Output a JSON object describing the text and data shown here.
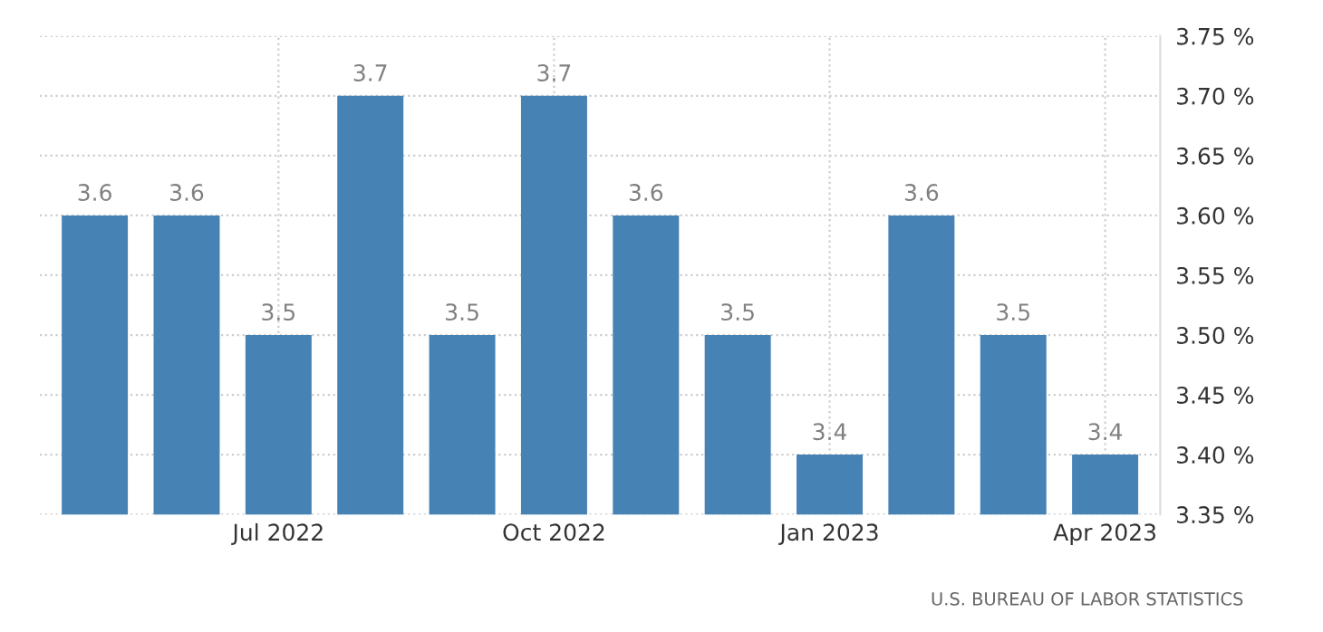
{
  "chart_data": {
    "type": "bar",
    "categories": [
      null,
      null,
      "Jul 2022",
      null,
      null,
      "Oct 2022",
      null,
      null,
      "Jan 2023",
      null,
      null,
      "Apr 2023"
    ],
    "values": [
      3.6,
      3.6,
      3.5,
      3.7,
      3.5,
      3.7,
      3.6,
      3.5,
      3.4,
      3.6,
      3.5,
      3.4
    ],
    "color": "#4682b4",
    "ylim": [
      3.35,
      3.75
    ],
    "yticks": [
      {
        "value": 3.35,
        "label": "3.35 %"
      },
      {
        "value": 3.4,
        "label": "3.40 %"
      },
      {
        "value": 3.45,
        "label": "3.45 %"
      },
      {
        "value": 3.5,
        "label": "3.50 %"
      },
      {
        "value": 3.55,
        "label": "3.55 %"
      },
      {
        "value": 3.6,
        "label": "3.60 %"
      },
      {
        "value": 3.65,
        "label": "3.65 %"
      },
      {
        "value": 3.7,
        "label": "3.70 %"
      },
      {
        "value": 3.75,
        "label": "3.75 %"
      }
    ],
    "grid": true,
    "data_labels": true,
    "annotations": [
      "U.S. BUREAU OF LABOR STATISTICS"
    ]
  }
}
